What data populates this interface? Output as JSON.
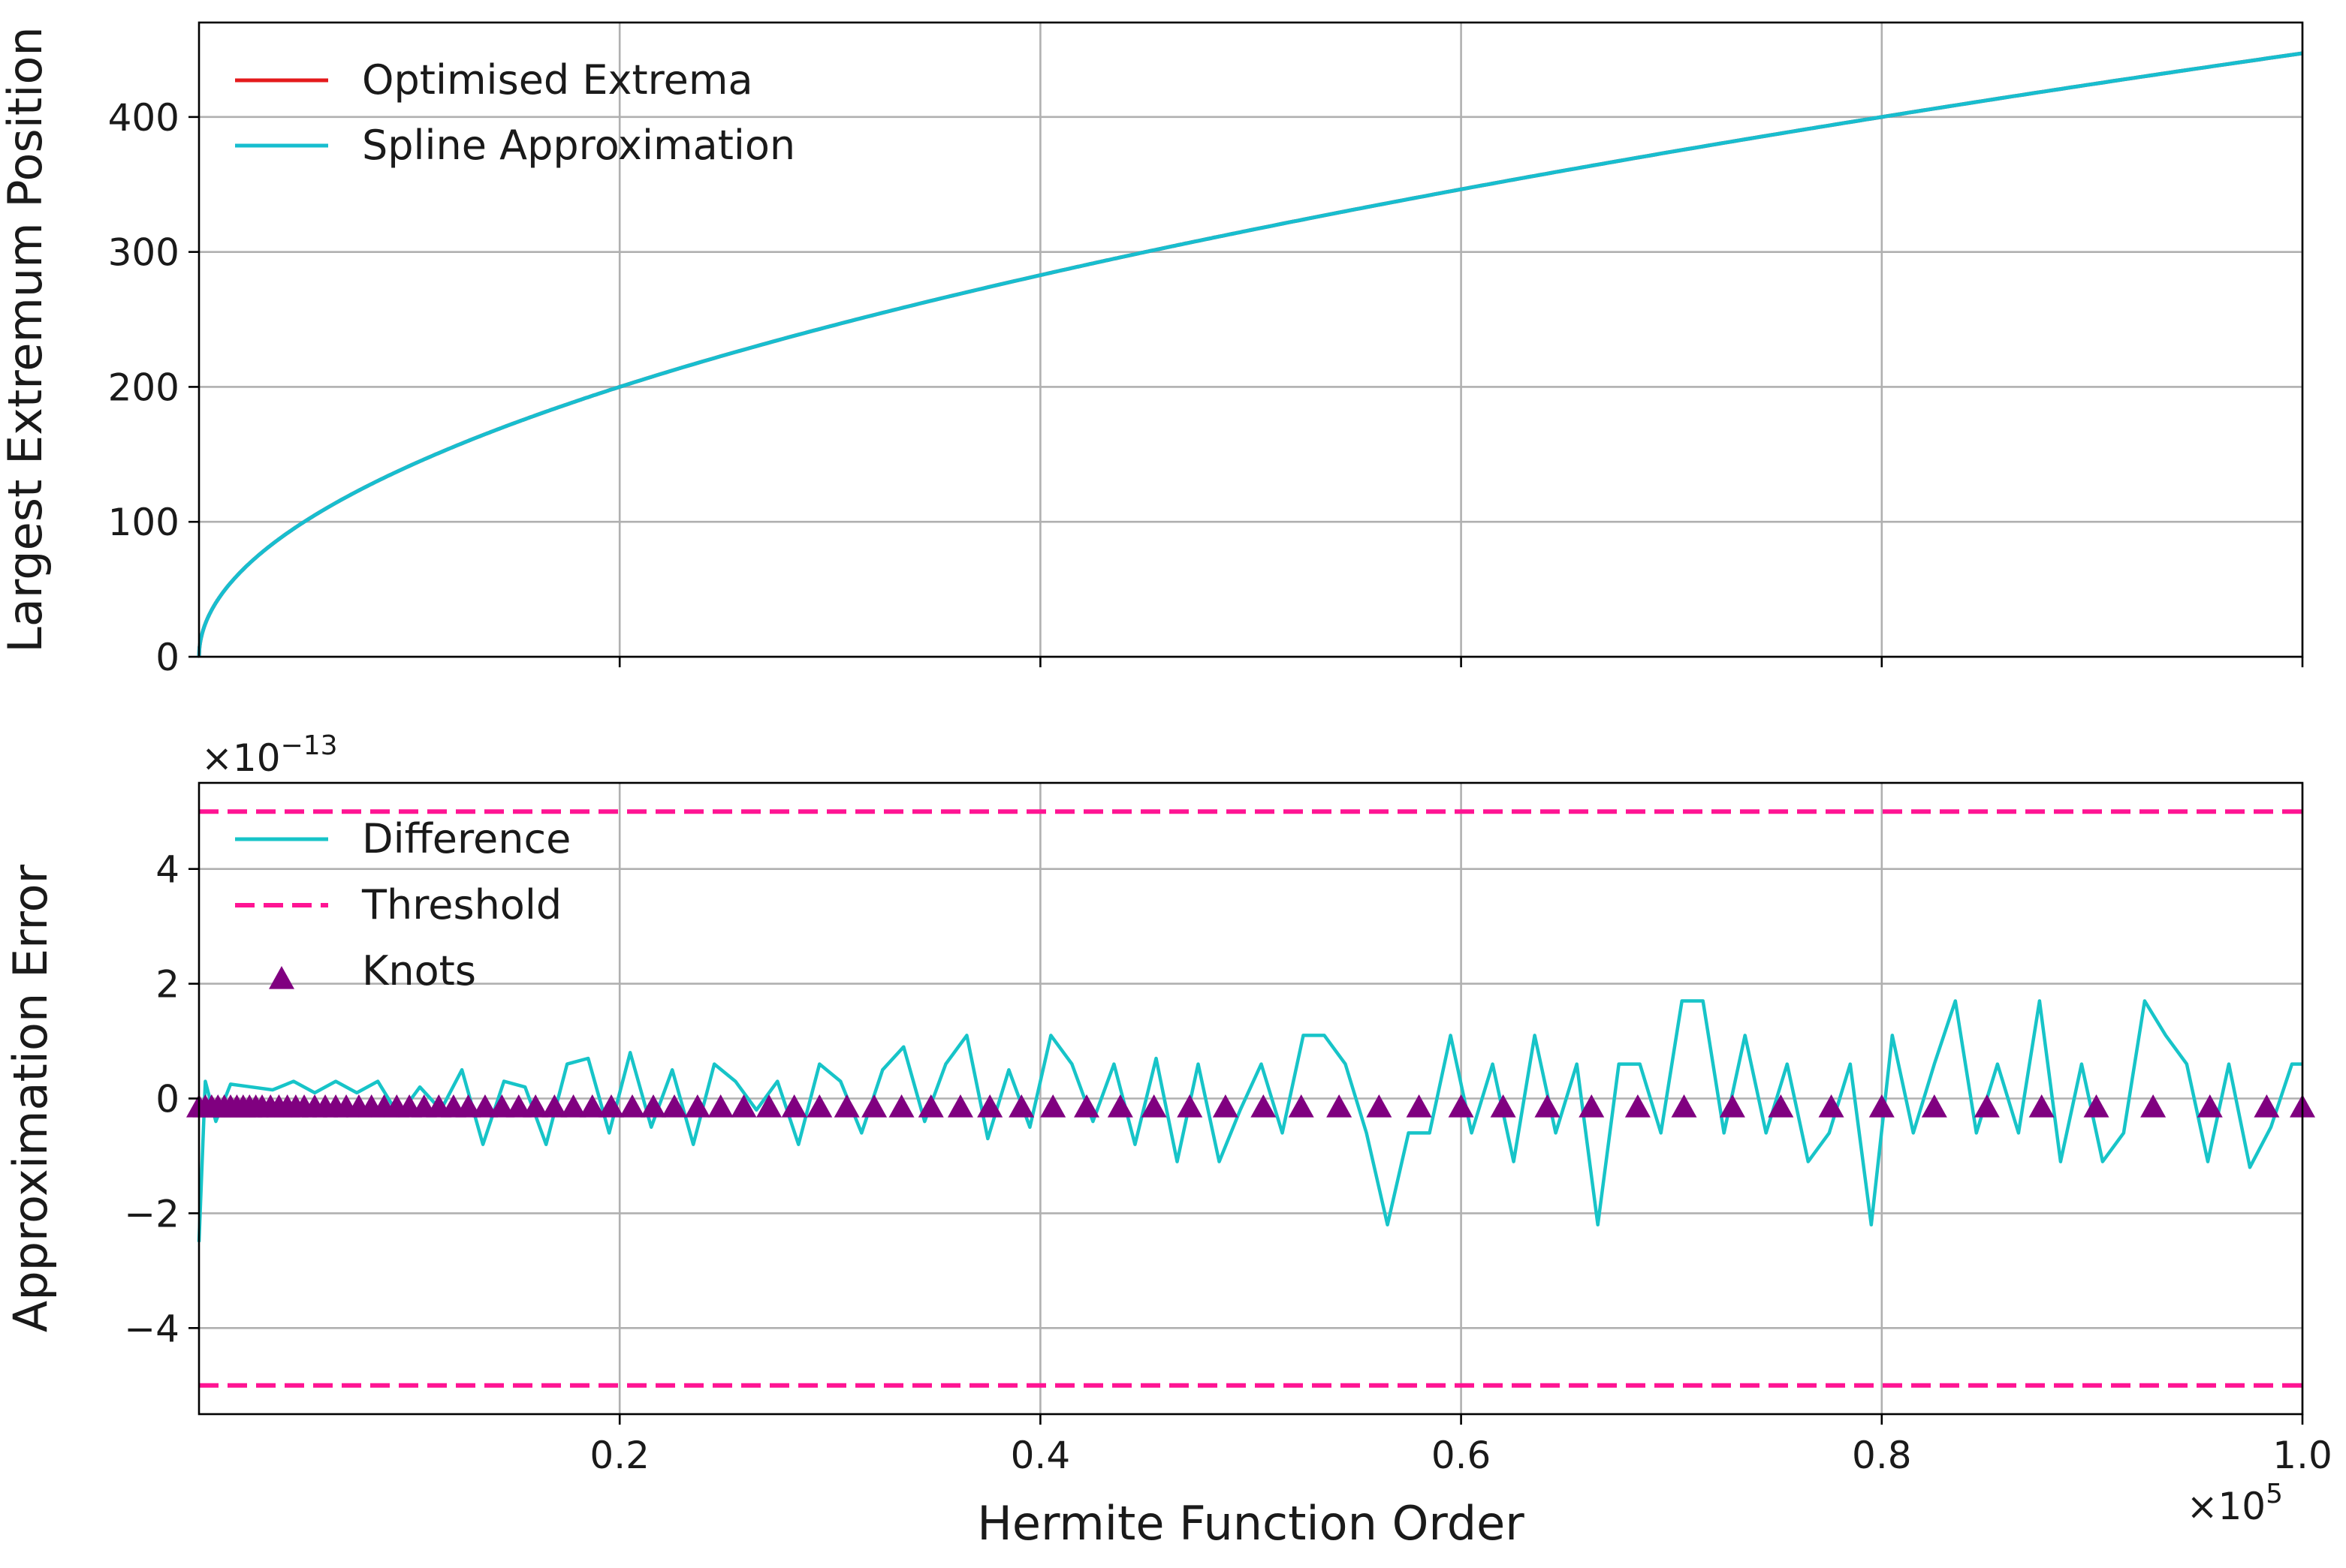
{
  "colors": {
    "optimised": "#e41a1c",
    "spline": "#17becf",
    "difference": "#17c4c8",
    "threshold": "#ff1493",
    "knots": "#800080"
  },
  "chart_data": [
    {
      "type": "line",
      "title": "",
      "xlabel": "",
      "ylabel": "Largest Extremum Position",
      "xlim": [
        0,
        100000
      ],
      "ylim": [
        0,
        470
      ],
      "yticks": [
        0,
        100,
        200,
        300,
        400
      ],
      "ytick_labels": [
        "0",
        "100",
        "200",
        "300",
        "400"
      ],
      "grid": true,
      "legend": "top-left",
      "series": [
        {
          "name": "Optimised Extrema",
          "x": [
            0,
            500,
            2000,
            5000,
            10000,
            15000,
            20000,
            30000,
            40000,
            45000,
            50000,
            60000,
            70000,
            80000,
            90000,
            100000
          ],
          "y": [
            0,
            31.6,
            63.2,
            100,
            141.4,
            173.2,
            200,
            244.9,
            282.8,
            300,
            316.2,
            346.4,
            374.2,
            400,
            424.3,
            447.2
          ]
        },
        {
          "name": "Spline Approximation",
          "x": [
            0,
            500,
            2000,
            5000,
            10000,
            15000,
            20000,
            30000,
            40000,
            45000,
            50000,
            60000,
            70000,
            80000,
            90000,
            100000
          ],
          "y": [
            0,
            31.6,
            63.2,
            100,
            141.4,
            173.2,
            200,
            244.9,
            282.8,
            300,
            316.2,
            346.4,
            374.2,
            400,
            424.3,
            447.2
          ]
        }
      ]
    },
    {
      "type": "line",
      "title": "",
      "xlabel": "Hermite Function Order",
      "ylabel": "Approximation Error",
      "xlim": [
        0,
        100000
      ],
      "ylim": [
        -5.5,
        5.5
      ],
      "y_multiplier": "×10",
      "y_multiplier_exp": "−13",
      "x_multiplier": "×10",
      "x_multiplier_exp": "5",
      "xticks": [
        0.2,
        0.4,
        0.6,
        0.8,
        1.0
      ],
      "xtick_labels": [
        "0.2",
        "0.4",
        "0.6",
        "0.8",
        "1.0"
      ],
      "yticks": [
        -4,
        -2,
        0,
        2,
        4
      ],
      "ytick_labels": [
        "−4",
        "−2",
        "0",
        "2",
        "4"
      ],
      "grid": true,
      "legend": "top-left",
      "series": [
        {
          "name": "Difference",
          "x": [
            0,
            300,
            800,
            1500,
            2500,
            3500,
            4500,
            5500,
            6500,
            7500,
            8500,
            9500,
            10500,
            11500,
            12500,
            13500,
            14500,
            15500,
            16500,
            17500,
            18500,
            19500,
            20500,
            21500,
            22500,
            23500,
            24500,
            25500,
            26500,
            27500,
            28500,
            29500,
            30500,
            31500,
            32500,
            33500,
            34500,
            35500,
            36500,
            37500,
            38500,
            39500,
            40500,
            41500,
            42500,
            43500,
            44500,
            45500,
            46500,
            47500,
            48500,
            49500,
            50500,
            51500,
            52500,
            53500,
            54500,
            55500,
            56500,
            57500,
            58500,
            59500,
            60500,
            61500,
            62500,
            63500,
            64500,
            65500,
            66500,
            67500,
            68500,
            69500,
            70500,
            71500,
            72500,
            73500,
            74500,
            75500,
            76500,
            77500,
            78500,
            79500,
            80500,
            81500,
            82500,
            83500,
            84500,
            85500,
            86500,
            87500,
            88500,
            89500,
            90500,
            91500,
            92500,
            93500,
            94500,
            95500,
            96500,
            97500,
            98500,
            99500,
            100000
          ],
          "y": [
            -2.5,
            0.3,
            -0.4,
            0.25,
            0.2,
            0.15,
            0.3,
            0.1,
            0.3,
            0.1,
            0.3,
            -0.3,
            0.2,
            -0.2,
            0.5,
            -0.8,
            0.3,
            0.2,
            -0.8,
            0.6,
            0.7,
            -0.6,
            0.8,
            -0.5,
            0.5,
            -0.8,
            0.6,
            0.3,
            -0.2,
            0.3,
            -0.8,
            0.6,
            0.3,
            -0.6,
            0.5,
            0.9,
            -0.4,
            0.6,
            1.1,
            -0.7,
            0.5,
            -0.5,
            1.1,
            0.6,
            -0.4,
            0.6,
            -0.8,
            0.7,
            -1.1,
            0.6,
            -1.1,
            -0.2,
            0.6,
            -0.6,
            1.1,
            1.1,
            0.6,
            -0.6,
            -2.2,
            -0.6,
            -0.6,
            1.1,
            -0.6,
            0.6,
            -1.1,
            1.1,
            -0.6,
            0.6,
            -2.2,
            0.6,
            0.6,
            -0.6,
            1.7,
            1.7,
            -0.6,
            1.1,
            -0.6,
            0.6,
            -1.1,
            -0.6,
            0.6,
            -2.2,
            1.1,
            -0.6,
            0.6,
            1.7,
            -0.6,
            0.6,
            -0.6,
            1.7,
            -1.1,
            0.6,
            -1.1,
            -0.6,
            1.7,
            1.1,
            0.6,
            -1.1,
            0.6,
            -1.2,
            -0.5,
            0.6,
            0.6
          ]
        },
        {
          "name": "Threshold",
          "x": [
            0,
            100000
          ],
          "y": [
            5.0,
            5.0
          ]
        },
        {
          "name": "Threshold",
          "x": [
            0,
            100000
          ],
          "y": [
            -5.0,
            -5.0
          ]
        },
        {
          "name": "Knots",
          "x": [
            0,
            300,
            600,
            900,
            1200,
            1500,
            1800,
            2100,
            2400,
            2700,
            3000,
            3400,
            3800,
            4200,
            4600,
            5000,
            5500,
            6000,
            6500,
            7000,
            7600,
            8200,
            8800,
            9400,
            10000,
            10700,
            11400,
            12100,
            12800,
            13600,
            14400,
            15200,
            16000,
            16900,
            17800,
            18700,
            19600,
            20600,
            21600,
            22600,
            23700,
            24800,
            25900,
            27100,
            28300,
            29500,
            30800,
            32100,
            33400,
            34800,
            36200,
            37600,
            39100,
            40600,
            42200,
            43800,
            45400,
            47100,
            48800,
            50600,
            52400,
            54200,
            56100,
            58000,
            60000,
            62000,
            64100,
            66200,
            68400,
            70600,
            72900,
            75200,
            77600,
            80000,
            82500,
            85000,
            87600,
            90200,
            92900,
            95600,
            98300,
            100000
          ],
          "y": [
            -0.15,
            -0.15,
            -0.15,
            -0.15,
            -0.15,
            -0.15,
            -0.15,
            -0.15,
            -0.15,
            -0.15,
            -0.15,
            -0.15,
            -0.15,
            -0.15,
            -0.15,
            -0.15,
            -0.15,
            -0.15,
            -0.15,
            -0.15,
            -0.15,
            -0.15,
            -0.15,
            -0.15,
            -0.15,
            -0.15,
            -0.15,
            -0.15,
            -0.15,
            -0.15,
            -0.15,
            -0.15,
            -0.15,
            -0.15,
            -0.15,
            -0.15,
            -0.15,
            -0.15,
            -0.15,
            -0.15,
            -0.15,
            -0.15,
            -0.15,
            -0.15,
            -0.15,
            -0.15,
            -0.15,
            -0.15,
            -0.15,
            -0.15,
            -0.15,
            -0.15,
            -0.15,
            -0.15,
            -0.15,
            -0.15,
            -0.15,
            -0.15,
            -0.15,
            -0.15,
            -0.15,
            -0.15,
            -0.15,
            -0.15,
            -0.15,
            -0.15,
            -0.15,
            -0.15,
            -0.15,
            -0.15,
            -0.15,
            -0.15,
            -0.15,
            -0.15,
            -0.15,
            -0.15,
            -0.15,
            -0.15,
            -0.15,
            -0.15,
            -0.15,
            -0.15
          ]
        }
      ]
    }
  ]
}
